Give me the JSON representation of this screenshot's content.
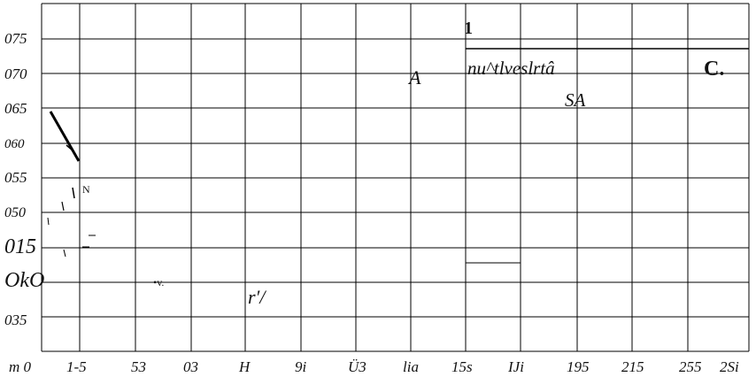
{
  "chart_data": {
    "type": "line",
    "grid": true,
    "y_tick_labels": [
      "075",
      "070",
      "065",
      "060",
      "055",
      "050",
      "015",
      "OkO",
      "035"
    ],
    "x_tick_labels": [
      "m 0",
      "1-5",
      "53",
      "03",
      "H",
      "9i",
      "Ü3",
      "lia",
      "15s",
      "IJi",
      "195",
      "215",
      "255",
      "2Si"
    ],
    "annotations": [
      {
        "id": "label-1",
        "text": "1"
      },
      {
        "id": "label-A",
        "text": "A"
      },
      {
        "id": "label-nu",
        "text": "nu^tlveslrtâ"
      },
      {
        "id": "label-SA",
        "text": "SA"
      },
      {
        "id": "label-C",
        "text": "C."
      },
      {
        "id": "label-N",
        "text": "N"
      },
      {
        "id": "label-v",
        "text": "•v."
      },
      {
        "id": "label-r",
        "text": "r′/"
      }
    ]
  }
}
